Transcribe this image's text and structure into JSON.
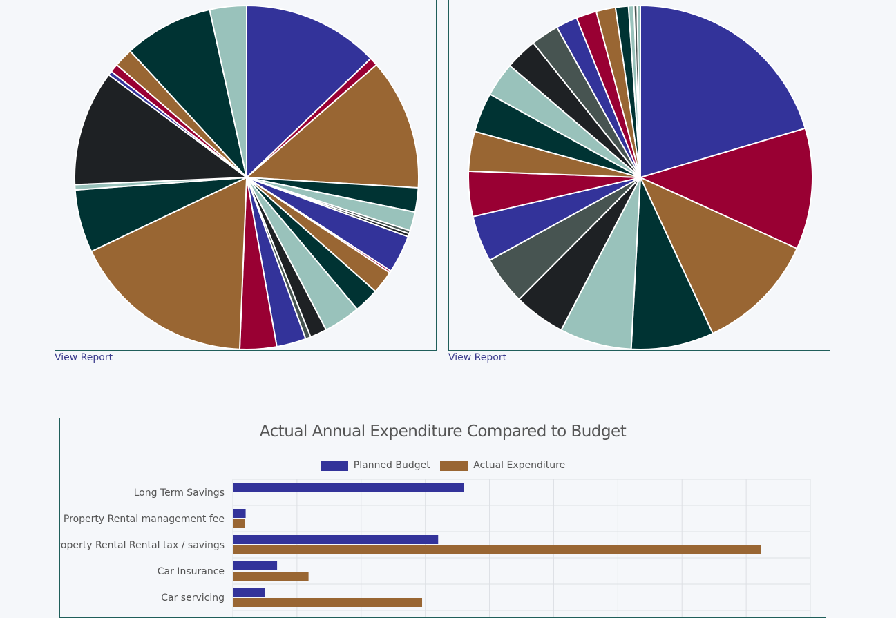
{
  "pie_left": {
    "view_report_label": "View Report"
  },
  "pie_right": {
    "view_report_label": "View Report"
  },
  "colors": {
    "blue": "#33339a",
    "crimson": "#990033",
    "brown": "#996633",
    "darkteal": "#003333",
    "seafoam": "#99c2bb",
    "charcoal": "#1e2124",
    "slate": "#475451"
  },
  "chart_data": [
    {
      "type": "pie",
      "slices": [
        {
          "value": 13.0,
          "color": "blue"
        },
        {
          "value": 0.8,
          "color": "crimson"
        },
        {
          "value": 12.5,
          "color": "brown"
        },
        {
          "value": 2.3,
          "color": "darkteal"
        },
        {
          "value": 1.8,
          "color": "seafoam"
        },
        {
          "value": 0.3,
          "color": "slate"
        },
        {
          "value": 0.3,
          "color": "charcoal"
        },
        {
          "value": 3.6,
          "color": "blue"
        },
        {
          "value": 0.2,
          "color": "crimson"
        },
        {
          "value": 2.2,
          "color": "brown"
        },
        {
          "value": 2.4,
          "color": "darkteal"
        },
        {
          "value": 3.5,
          "color": "seafoam"
        },
        {
          "value": 1.6,
          "color": "charcoal"
        },
        {
          "value": 0.5,
          "color": "slate"
        },
        {
          "value": 2.8,
          "color": "blue"
        },
        {
          "value": 3.5,
          "color": "crimson"
        },
        {
          "value": 17.5,
          "color": "brown"
        },
        {
          "value": 6.0,
          "color": "darkteal"
        },
        {
          "value": 0.5,
          "color": "seafoam"
        },
        {
          "value": 11.0,
          "color": "charcoal"
        },
        {
          "value": 0.4,
          "color": "blue"
        },
        {
          "value": 0.8,
          "color": "crimson"
        },
        {
          "value": 1.8,
          "color": "brown"
        },
        {
          "value": 8.5,
          "color": "darkteal"
        },
        {
          "value": 3.5,
          "color": "seafoam"
        }
      ]
    },
    {
      "type": "pie",
      "slices": [
        {
          "value": 20.2,
          "color": "blue"
        },
        {
          "value": 11.3,
          "color": "crimson"
        },
        {
          "value": 11.2,
          "color": "brown"
        },
        {
          "value": 7.7,
          "color": "darkteal"
        },
        {
          "value": 6.7,
          "color": "seafoam"
        },
        {
          "value": 4.8,
          "color": "charcoal"
        },
        {
          "value": 4.5,
          "color": "slate"
        },
        {
          "value": 4.3,
          "color": "blue"
        },
        {
          "value": 4.2,
          "color": "crimson"
        },
        {
          "value": 3.7,
          "color": "brown"
        },
        {
          "value": 3.7,
          "color": "darkteal"
        },
        {
          "value": 3.2,
          "color": "seafoam"
        },
        {
          "value": 3.0,
          "color": "charcoal"
        },
        {
          "value": 2.6,
          "color": "slate"
        },
        {
          "value": 2.0,
          "color": "blue"
        },
        {
          "value": 1.9,
          "color": "crimson"
        },
        {
          "value": 1.8,
          "color": "brown"
        },
        {
          "value": 1.2,
          "color": "darkteal"
        },
        {
          "value": 0.5,
          "color": "seafoam"
        },
        {
          "value": 0.3,
          "color": "slate"
        },
        {
          "value": 0.3,
          "color": "seafoam"
        }
      ]
    },
    {
      "type": "bar",
      "orientation": "horizontal",
      "title": "Actual Annual Expenditure Compared to Budget",
      "legend_position": "top",
      "grid": true,
      "xlim": [
        0,
        9000
      ],
      "categories": [
        "Long Term Savings",
        "Property Rental management fee",
        "Property Rental Rental tax / savings",
        "Car Insurance",
        "Car servicing"
      ],
      "series": [
        {
          "name": "Planned Budget",
          "color": "blue",
          "values": [
            3600,
            200,
            3200,
            690,
            500
          ]
        },
        {
          "name": "Actual Expenditure",
          "color": "brown",
          "values": [
            null,
            190,
            8230,
            1180,
            2950
          ]
        }
      ]
    }
  ]
}
